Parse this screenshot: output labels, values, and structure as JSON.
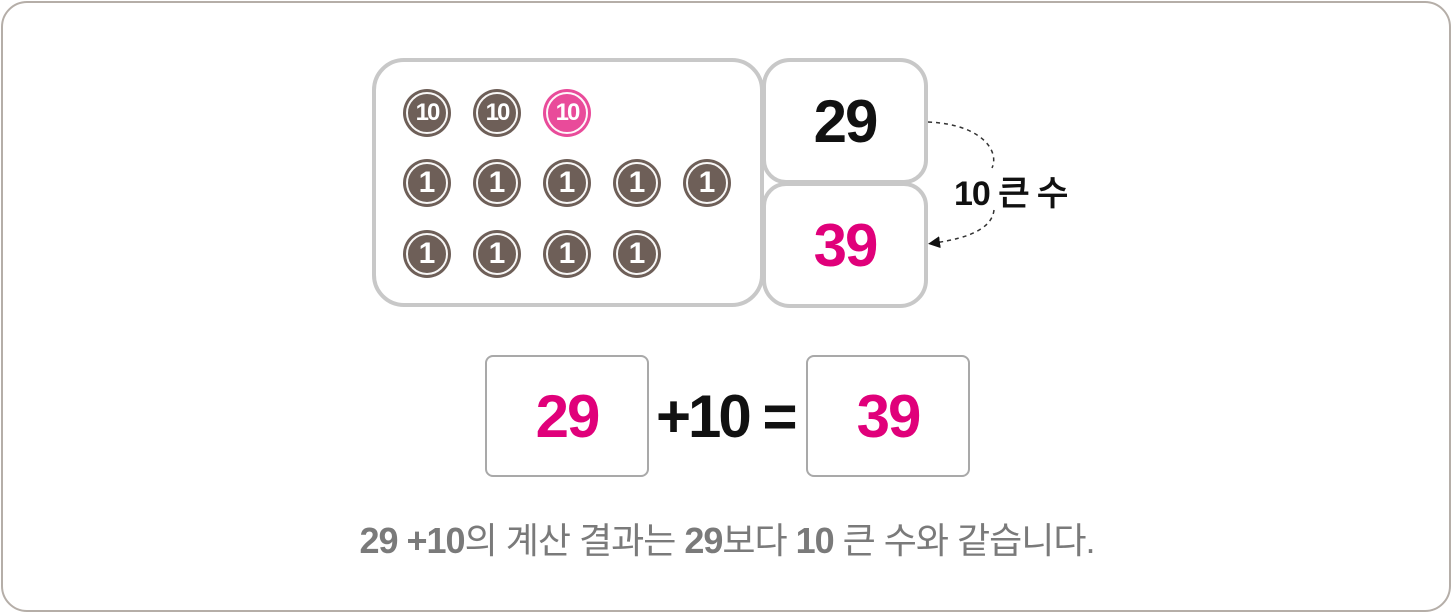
{
  "coins": {
    "tens": [
      {
        "label": "10",
        "highlight": false
      },
      {
        "label": "10",
        "highlight": false
      },
      {
        "label": "10",
        "highlight": true
      }
    ],
    "ones_row1": [
      "1",
      "1",
      "1",
      "1",
      "1"
    ],
    "ones_row2": [
      "1",
      "1",
      "1",
      "1"
    ]
  },
  "numbers": {
    "original": "29",
    "result": "39"
  },
  "arrow_label": "10 큰 수",
  "equation": {
    "left": "29",
    "operator": "+10 =",
    "right": "39"
  },
  "caption": {
    "part1": "29 +10",
    "part2": "의 계산 결과는 ",
    "part3": "29",
    "part4": "보다 ",
    "part5": "10",
    "part6": " 큰 수와 같습니다."
  },
  "colors": {
    "coin": "#6e5f58",
    "coin_highlight": "#e94b9a",
    "result_text": "#e0007a",
    "border": "#c8c8c8"
  }
}
